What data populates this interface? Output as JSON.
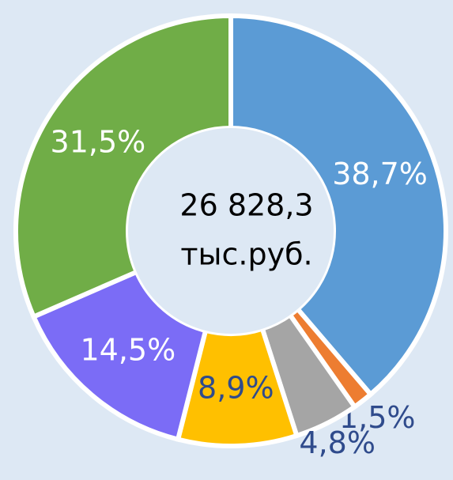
{
  "chart_data": {
    "type": "donut",
    "center_label": [
      "26 828,3",
      "тыс.руб."
    ],
    "values": [
      38.7,
      1.5,
      4.8,
      8.9,
      14.5,
      31.5
    ],
    "value_labels": [
      "38,7%",
      "1,5%",
      "4,8%",
      "8,9%",
      "14,5%",
      "31,5%"
    ],
    "colors": [
      "#5b9bd5",
      "#ed7d31",
      "#a5a5a5",
      "#ffc000",
      "#7b6cf6",
      "#70ad47"
    ],
    "label_colors": [
      "#ffffff",
      "#2f4b8c",
      "#2f4b8c",
      "#2f4b8c",
      "#ffffff",
      "#ffffff"
    ]
  }
}
